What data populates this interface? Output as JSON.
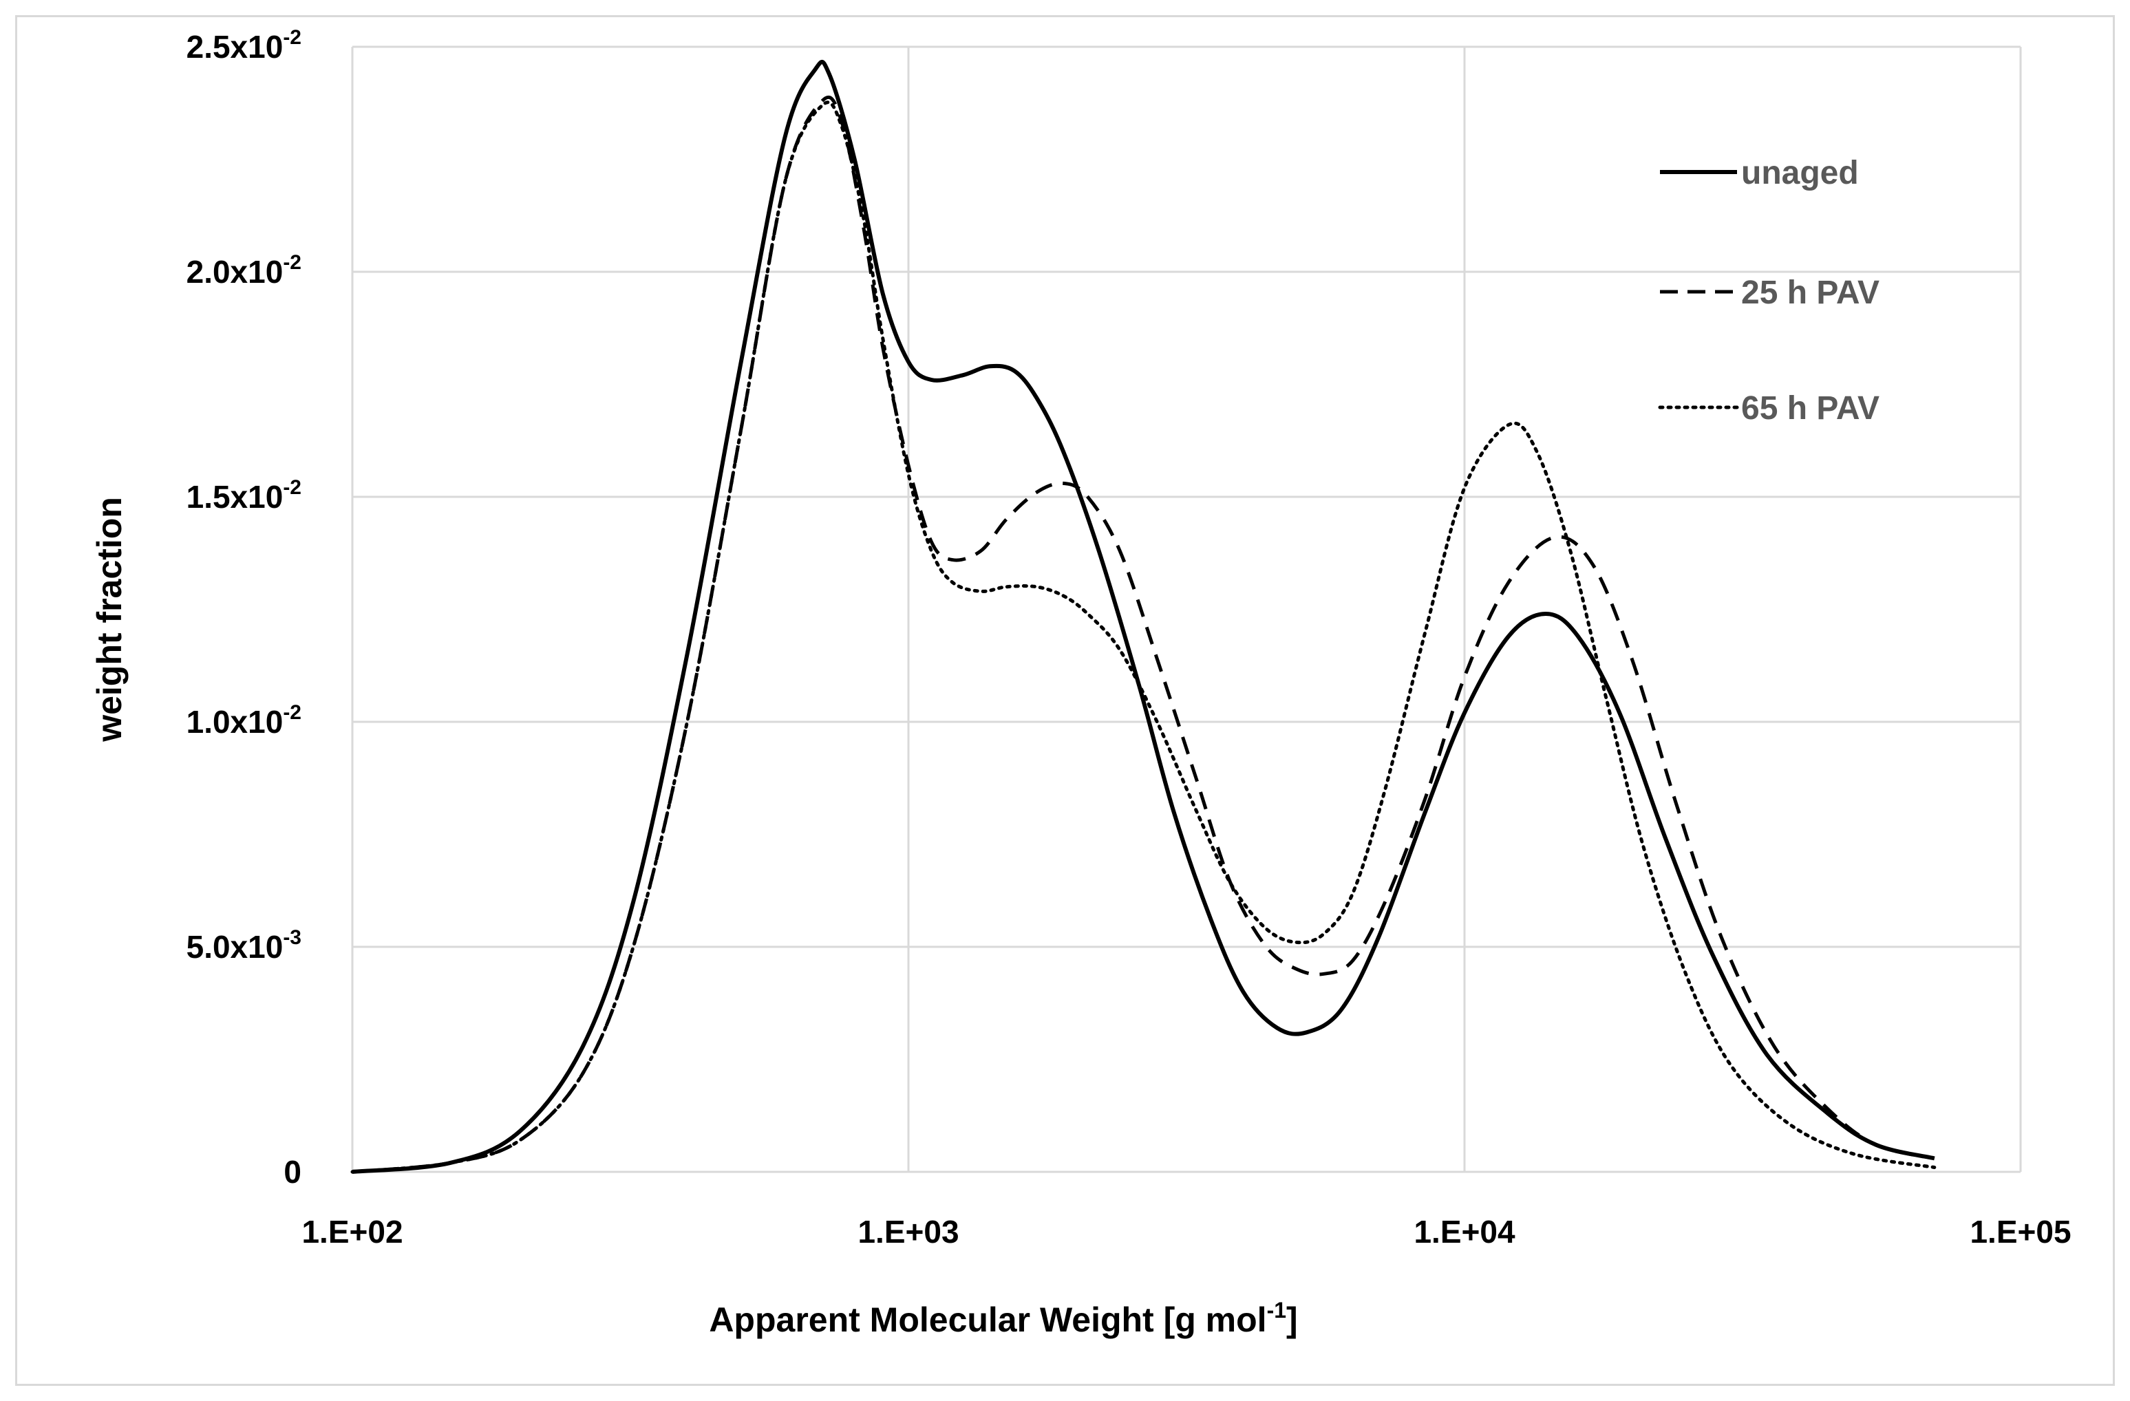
{
  "chart_data": {
    "type": "line",
    "title": "",
    "xlabel": "Apparent Molecular Weight [g mol",
    "xlabel_sup": "-1",
    "xlabel_end": "]",
    "ylabel": "weight fraction",
    "x_scale": "log",
    "xlim": [
      100,
      100000
    ],
    "ylim": [
      0,
      0.025
    ],
    "grid": true,
    "legend_position": "top-right",
    "x_ticks": [
      {
        "value": 100,
        "label": "1.E+02"
      },
      {
        "value": 1000,
        "label": "1.E+03"
      },
      {
        "value": 10000,
        "label": "1.E+04"
      },
      {
        "value": 100000,
        "label": "1.E+05"
      }
    ],
    "y_ticks": [
      {
        "value": 0,
        "mant": "0",
        "exp": ""
      },
      {
        "value": 0.005,
        "mant": "5.0x10",
        "exp": "-3"
      },
      {
        "value": 0.01,
        "mant": "1.0x10",
        "exp": "-2"
      },
      {
        "value": 0.015,
        "mant": "1.5x10",
        "exp": "-2"
      },
      {
        "value": 0.02,
        "mant": "2.0x10",
        "exp": "-2"
      },
      {
        "value": 0.025,
        "mant": "2.5x10",
        "exp": "-2"
      }
    ],
    "series": [
      {
        "name": "unaged",
        "style": "solid",
        "points": [
          [
            100,
            0.0
          ],
          [
            150,
            0.0002
          ],
          [
            200,
            0.0009
          ],
          [
            260,
            0.0028
          ],
          [
            320,
            0.006
          ],
          [
            400,
            0.0115
          ],
          [
            500,
            0.018
          ],
          [
            600,
            0.023
          ],
          [
            680,
            0.0245
          ],
          [
            720,
            0.0244
          ],
          [
            800,
            0.0225
          ],
          [
            900,
            0.0195
          ],
          [
            1000,
            0.018
          ],
          [
            1100,
            0.0176
          ],
          [
            1250,
            0.0177
          ],
          [
            1400,
            0.0179
          ],
          [
            1550,
            0.0178
          ],
          [
            1700,
            0.0172
          ],
          [
            1900,
            0.016
          ],
          [
            2200,
            0.0138
          ],
          [
            2600,
            0.0108
          ],
          [
            3000,
            0.008
          ],
          [
            3500,
            0.0056
          ],
          [
            4000,
            0.004
          ],
          [
            4600,
            0.0032
          ],
          [
            5200,
            0.0031
          ],
          [
            6000,
            0.0036
          ],
          [
            7000,
            0.0052
          ],
          [
            8500,
            0.008
          ],
          [
            10000,
            0.0102
          ],
          [
            12000,
            0.0119
          ],
          [
            14000,
            0.0124
          ],
          [
            16000,
            0.0119
          ],
          [
            19000,
            0.0102
          ],
          [
            23000,
            0.0074
          ],
          [
            28000,
            0.0048
          ],
          [
            35000,
            0.0026
          ],
          [
            45000,
            0.0013
          ],
          [
            55000,
            0.0006
          ],
          [
            70000,
            0.0003
          ]
        ]
      },
      {
        "name": "25 h PAV",
        "style": "dashed",
        "points": [
          [
            100,
            0.0
          ],
          [
            150,
            0.0002
          ],
          [
            200,
            0.0007
          ],
          [
            260,
            0.0022
          ],
          [
            320,
            0.005
          ],
          [
            400,
            0.01
          ],
          [
            500,
            0.0165
          ],
          [
            600,
            0.022
          ],
          [
            700,
            0.0238
          ],
          [
            760,
            0.0233
          ],
          [
            830,
            0.021
          ],
          [
            900,
            0.0183
          ],
          [
            1000,
            0.0157
          ],
          [
            1100,
            0.014
          ],
          [
            1200,
            0.0136
          ],
          [
            1350,
            0.0138
          ],
          [
            1500,
            0.0145
          ],
          [
            1700,
            0.0151
          ],
          [
            1900,
            0.0153
          ],
          [
            2100,
            0.015
          ],
          [
            2400,
            0.0138
          ],
          [
            2800,
            0.0114
          ],
          [
            3300,
            0.0087
          ],
          [
            3800,
            0.0064
          ],
          [
            4400,
            0.005
          ],
          [
            5000,
            0.0045
          ],
          [
            5600,
            0.0044
          ],
          [
            6300,
            0.0047
          ],
          [
            7200,
            0.006
          ],
          [
            8500,
            0.0083
          ],
          [
            10000,
            0.011
          ],
          [
            12000,
            0.0131
          ],
          [
            14500,
            0.0141
          ],
          [
            17000,
            0.0135
          ],
          [
            20000,
            0.0114
          ],
          [
            24000,
            0.0082
          ],
          [
            29000,
            0.0052
          ],
          [
            36000,
            0.0028
          ],
          [
            45000,
            0.0014
          ],
          [
            55000,
            0.0006
          ],
          [
            70000,
            0.0003
          ]
        ]
      },
      {
        "name": "65 h PAV",
        "style": "dotted",
        "points": [
          [
            100,
            0.0
          ],
          [
            150,
            0.0002
          ],
          [
            200,
            0.0007
          ],
          [
            260,
            0.0022
          ],
          [
            320,
            0.005
          ],
          [
            400,
            0.01
          ],
          [
            500,
            0.0165
          ],
          [
            600,
            0.022
          ],
          [
            700,
            0.0237
          ],
          [
            760,
            0.0232
          ],
          [
            830,
            0.0212
          ],
          [
            900,
            0.0185
          ],
          [
            1000,
            0.0155
          ],
          [
            1100,
            0.0138
          ],
          [
            1200,
            0.0131
          ],
          [
            1350,
            0.0129
          ],
          [
            1500,
            0.013
          ],
          [
            1700,
            0.013
          ],
          [
            1900,
            0.0128
          ],
          [
            2100,
            0.0124
          ],
          [
            2400,
            0.0116
          ],
          [
            2800,
            0.01
          ],
          [
            3300,
            0.008
          ],
          [
            3800,
            0.0064
          ],
          [
            4400,
            0.0054
          ],
          [
            5000,
            0.0051
          ],
          [
            5600,
            0.0053
          ],
          [
            6300,
            0.0062
          ],
          [
            7200,
            0.0085
          ],
          [
            8500,
            0.012
          ],
          [
            10000,
            0.0152
          ],
          [
            12000,
            0.0166
          ],
          [
            13500,
            0.016
          ],
          [
            15500,
            0.0138
          ],
          [
            18000,
            0.0105
          ],
          [
            21000,
            0.0072
          ],
          [
            25000,
            0.0044
          ],
          [
            30000,
            0.0024
          ],
          [
            38000,
            0.0011
          ],
          [
            50000,
            0.0004
          ],
          [
            70000,
            0.0001
          ]
        ]
      }
    ]
  }
}
